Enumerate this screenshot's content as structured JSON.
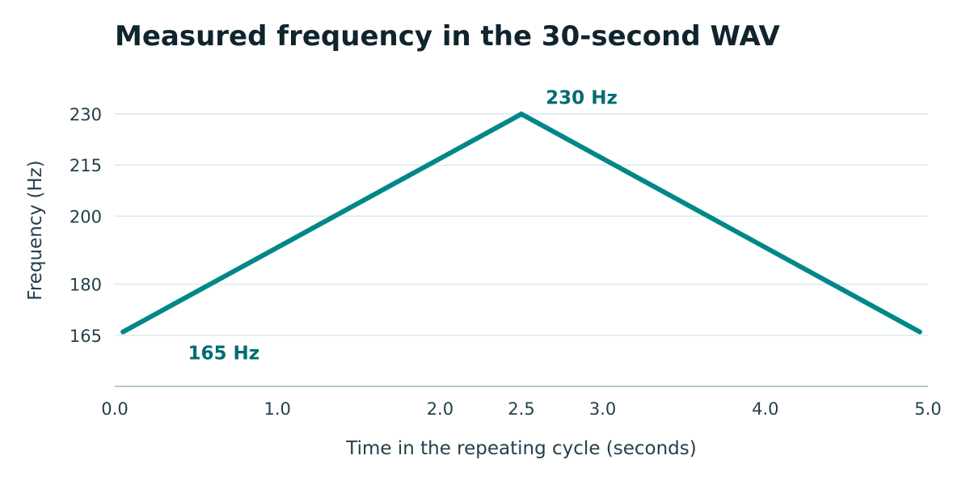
{
  "colors": {
    "line": "#00878a",
    "annotation": "#006d70",
    "grid": "#dce9ea",
    "axis": "#9bb3be",
    "text": "#23404a",
    "title": "#10242e"
  },
  "chart_data": {
    "type": "line",
    "title": "Measured frequency in the 30-second WAV",
    "xlabel": "Time in the repeating cycle (seconds)",
    "ylabel": "Frequency (Hz)",
    "xlim": [
      0,
      5
    ],
    "ylim": [
      150,
      235
    ],
    "x_ticks": [
      {
        "value": 0,
        "label": "0.0"
      },
      {
        "value": 1,
        "label": "1.0"
      },
      {
        "value": 2,
        "label": "2.0"
      },
      {
        "value": 2.5,
        "label": "2.5"
      },
      {
        "value": 3,
        "label": "3.0"
      },
      {
        "value": 4,
        "label": "4.0"
      },
      {
        "value": 5,
        "label": "5.0"
      }
    ],
    "y_ticks": [
      {
        "value": 165,
        "label": "165"
      },
      {
        "value": 180,
        "label": "180"
      },
      {
        "value": 200,
        "label": "200"
      },
      {
        "value": 215,
        "label": "215"
      },
      {
        "value": 230,
        "label": "230"
      }
    ],
    "grid": "horizontal",
    "legend": "none",
    "series": [
      {
        "x": [
          0.05,
          2.5,
          4.95
        ],
        "y": [
          166,
          230,
          166
        ]
      }
    ],
    "annotations": [
      {
        "text": "230 Hz",
        "x": 2.65,
        "y": 233
      },
      {
        "text": "165 Hz",
        "x": 0.45,
        "y": 158
      }
    ]
  }
}
